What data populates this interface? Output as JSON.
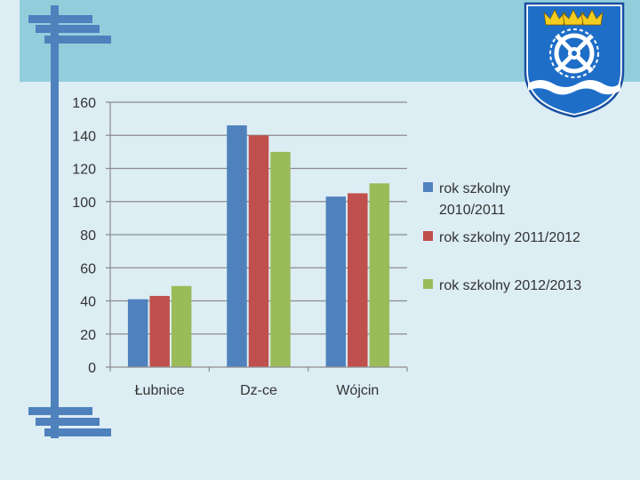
{
  "colors": {
    "header_band": "#92cddc",
    "decoration": "#4f81bd",
    "background": "#dcedf4"
  },
  "crest": {
    "icon": "coat-of-arms-icon"
  },
  "chart_data": {
    "type": "bar",
    "categories": [
      "Łubnice",
      "Dz-ce",
      "Wójcin"
    ],
    "series": [
      {
        "name": "rok szkolny 2010/2011",
        "color": "#4f81bd",
        "values": [
          41,
          146,
          103
        ]
      },
      {
        "name": "rok szkolny 2011/2012",
        "color": "#c0504d",
        "values": [
          43,
          140,
          105
        ]
      },
      {
        "name": "rok szkolny 2012/2013",
        "color": "#9bbb59",
        "values": [
          49,
          130,
          111
        ]
      }
    ],
    "ylim": [
      0,
      160
    ],
    "yticks": [
      "0",
      "20",
      "40",
      "60",
      "80",
      "100",
      "120",
      "140",
      "160"
    ],
    "grid": true,
    "legend": {
      "position": "right",
      "entries": [
        {
          "lines": [
            "rok szkolny",
            "2010/2011"
          ]
        },
        {
          "lines": [
            "rok szkolny 2011/2012"
          ]
        },
        {
          "lines": [
            "rok szkolny 2012/2013"
          ]
        }
      ]
    }
  }
}
